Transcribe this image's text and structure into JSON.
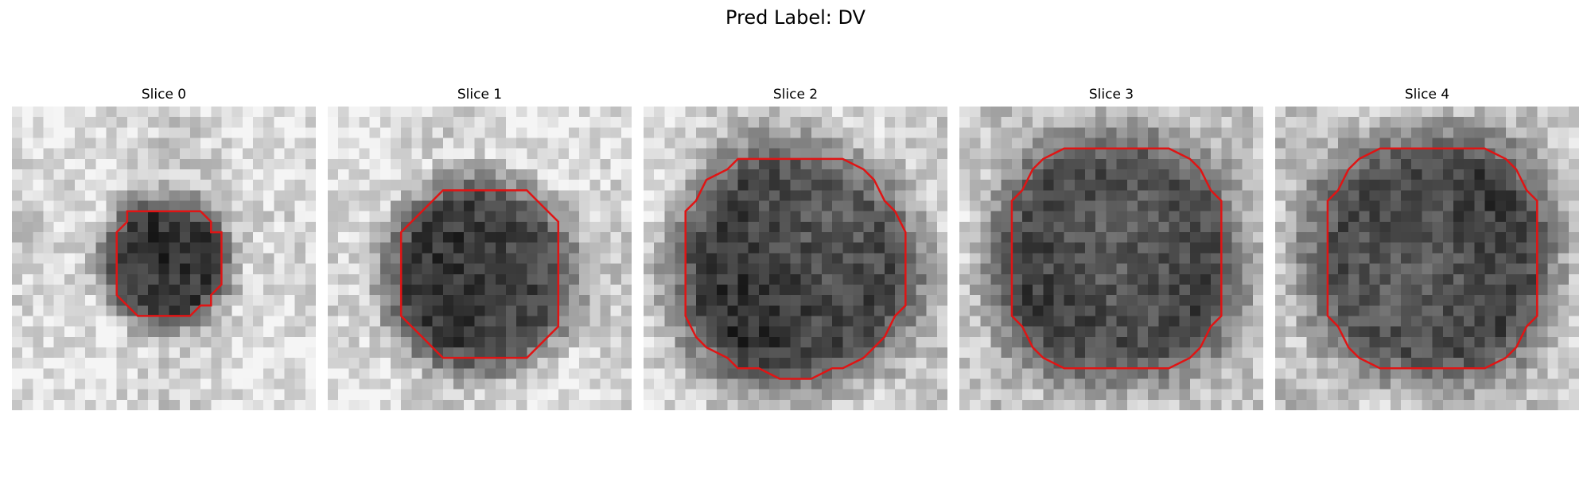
{
  "figure": {
    "title": "Pred Label: DV"
  },
  "panels": [
    {
      "title": "Slice 0"
    },
    {
      "title": "Slice 1"
    },
    {
      "title": "Slice 2"
    },
    {
      "title": "Slice 3"
    },
    {
      "title": "Slice 4"
    }
  ],
  "style": {
    "contour_color": "#e01414",
    "background": "#ffffff"
  }
}
